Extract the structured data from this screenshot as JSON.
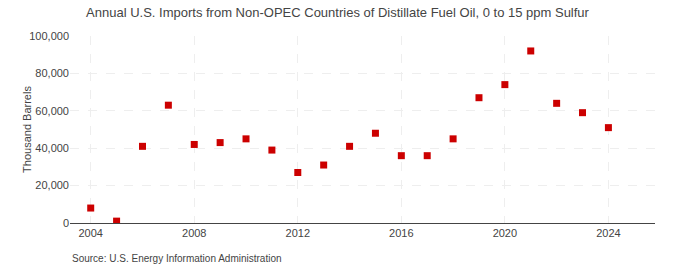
{
  "chart_data": {
    "type": "scatter",
    "title": "Annual U.S. Imports from Non-OPEC Countries of Distillate Fuel Oil, 0 to 15 ppm Sulfur",
    "ylabel": "Thousand Barrels",
    "annotations": [
      "Source: U.S. Energy Information Administration"
    ],
    "x": [
      2004,
      2005,
      2006,
      2007,
      2008,
      2009,
      2010,
      2011,
      2012,
      2013,
      2014,
      2015,
      2016,
      2017,
      2018,
      2019,
      2020,
      2021,
      2022,
      2023,
      2024
    ],
    "values": [
      8000,
      1000,
      41000,
      63000,
      42000,
      43000,
      45000,
      39000,
      27000,
      31000,
      41000,
      48000,
      36000,
      36000,
      45000,
      67000,
      74000,
      92000,
      64000,
      59000,
      51000
    ],
    "color": "#cc0000",
    "marker": "square",
    "xlim": [
      2003.2,
      2025.8
    ],
    "xticks": [
      2004,
      2008,
      2012,
      2016,
      2020,
      2024
    ],
    "ylim": [
      0,
      100000
    ],
    "yticks": [
      0,
      {
        "value": 20000,
        "label": "20,000"
      },
      {
        "value": 40000,
        "label": "40,000"
      },
      {
        "value": 60000,
        "label": "60,000"
      },
      {
        "value": 80000,
        "label": "80,000"
      },
      {
        "value": 100000,
        "label": "100,000"
      }
    ],
    "grid": true
  }
}
